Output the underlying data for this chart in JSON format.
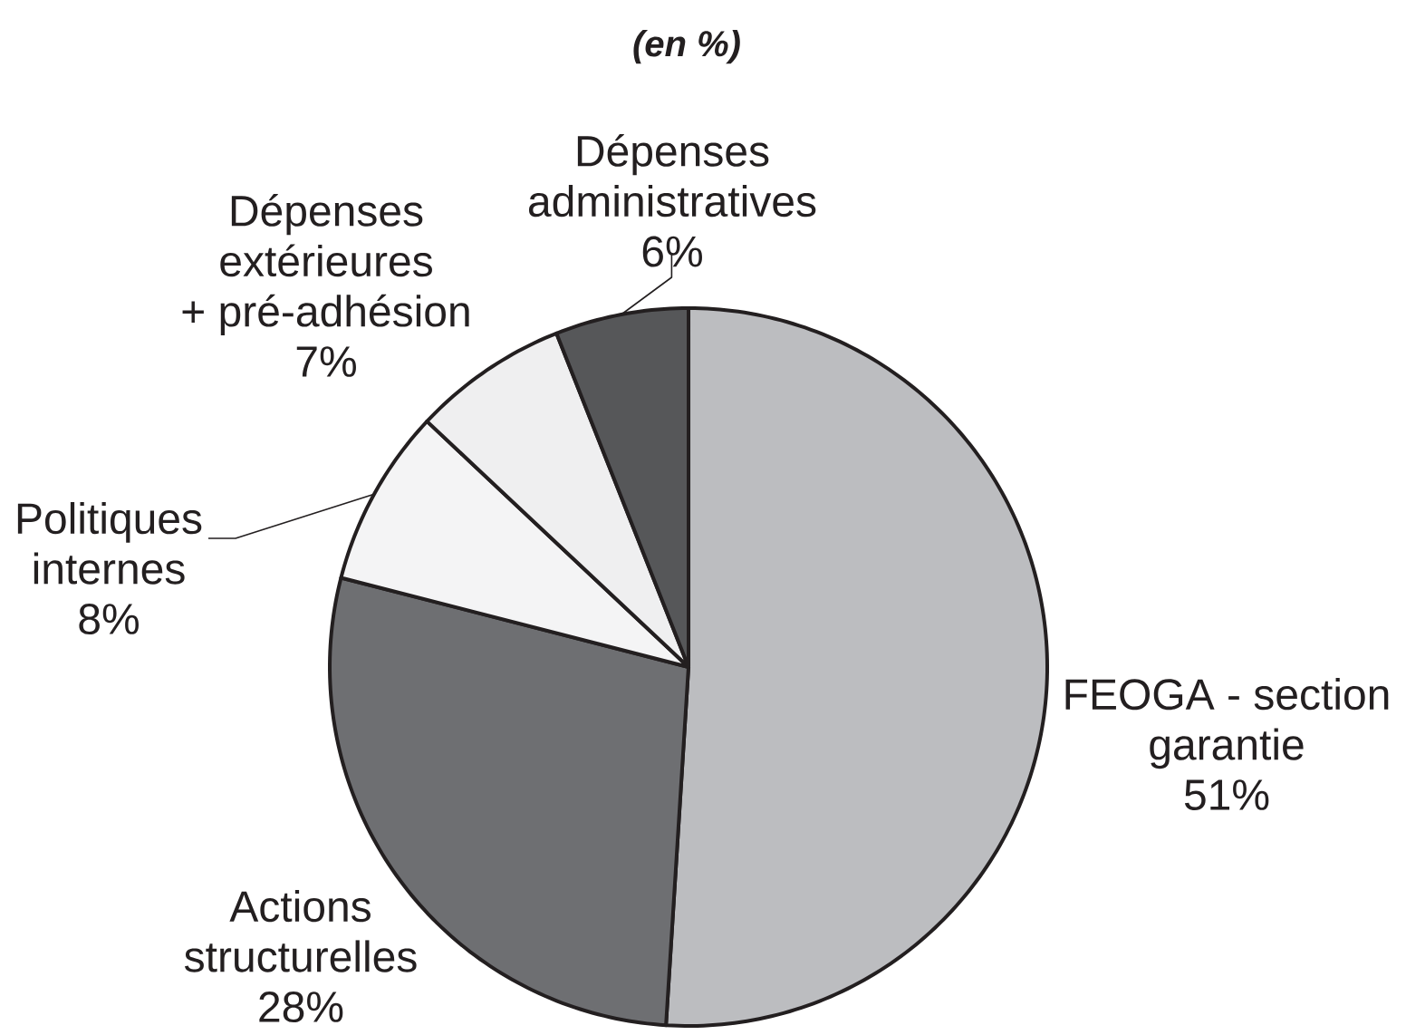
{
  "chart_data": {
    "type": "pie",
    "subtitle": "(en %)",
    "categories": [
      "FEOGA - section garantie",
      "Actions structurelles",
      "Politiques internes",
      "Dépenses extérieures + pré-adhésion",
      "Dépenses administratives"
    ],
    "values": [
      51,
      28,
      8,
      7,
      6
    ],
    "value_labels": [
      "51%",
      "28%",
      "8%",
      "7%",
      "6%"
    ],
    "colors": [
      "#bcbdc0",
      "#6e6f72",
      "#f4f4f5",
      "#efeff0",
      "#565759"
    ]
  }
}
